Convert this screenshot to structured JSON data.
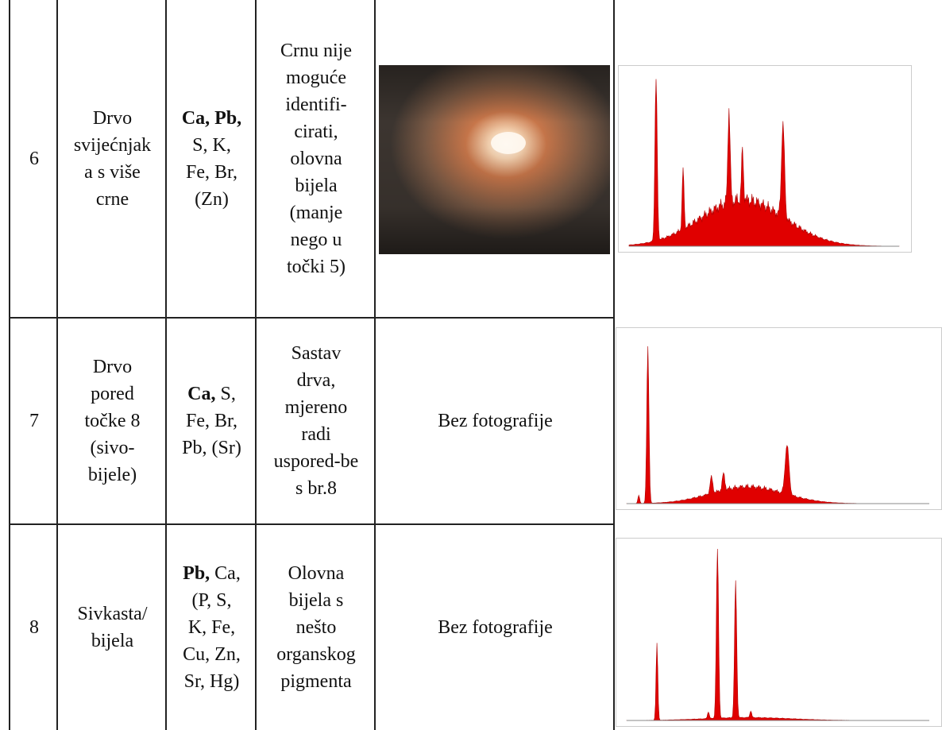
{
  "table": {
    "rows": [
      {
        "number": "6",
        "sample": [
          "Drvo",
          "svijećnjak",
          "a s više",
          "crne"
        ],
        "elements": [
          {
            "bold": "Ca, Pb,"
          },
          {
            "text": "S, K,"
          },
          {
            "text": "Fe, Br,"
          },
          {
            "text": "(Zn)"
          }
        ],
        "note": [
          "Crnu nije",
          "moguće",
          "identifi-",
          "cirati,",
          "olovna",
          "bijela",
          "(manje",
          "nego u",
          "točki 5)"
        ]
      },
      {
        "number": "7",
        "sample": [
          "Drvo",
          "pored",
          "točke 8",
          "(sivo-",
          "bijele)"
        ],
        "elements": [
          {
            "bold": "Ca,",
            "text": "S,"
          },
          {
            "text": "Fe, Br,"
          },
          {
            "text": "Pb, (Sr)"
          }
        ],
        "note": [
          "Sastav",
          "drva,",
          "mjereno",
          "radi",
          "uspored-be",
          "s br.8"
        ],
        "photo": "Bez fotografije"
      },
      {
        "number": "8",
        "sample": [
          "Sivkasta/",
          "bijela"
        ],
        "elements": [
          {
            "bold": "Pb,",
            "text": "Ca,"
          },
          {
            "text": "(P, S,"
          },
          {
            "text": "K, Fe,"
          },
          {
            "text": "Cu, Zn,"
          },
          {
            "text": "Sr, Hg)"
          }
        ],
        "note": [
          "Olovna",
          "bijela s",
          "nešto",
          "organskog",
          "pigmenta"
        ],
        "photo": "Bez fotografije"
      }
    ]
  }
}
